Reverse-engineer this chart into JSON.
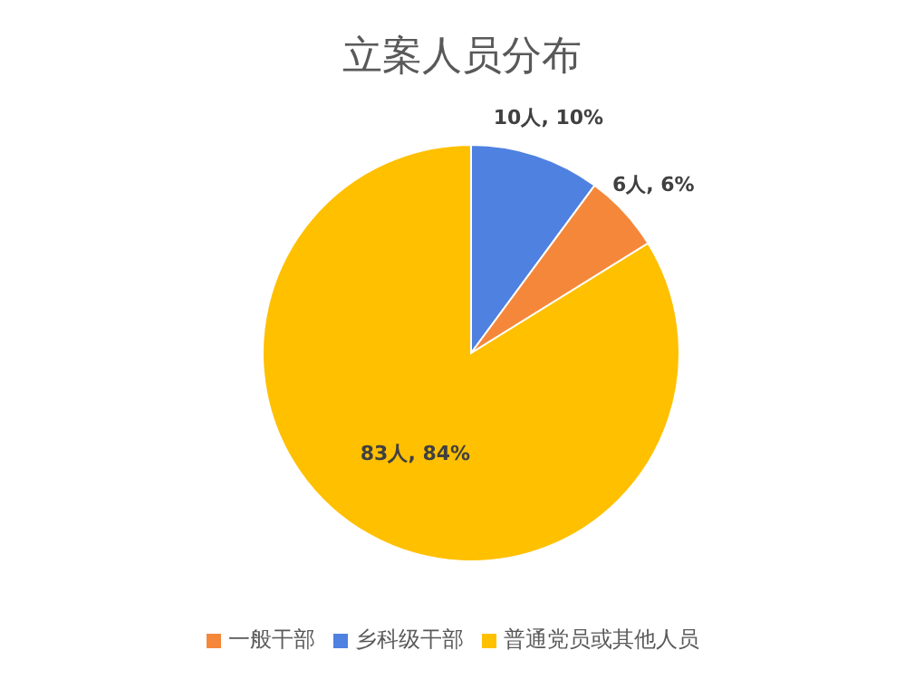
{
  "chart_data": {
    "type": "pie",
    "title": "立案人员分布",
    "categories": [
      "乡科级干部",
      "一般干部",
      "普通党员或其他人员"
    ],
    "values": [
      10,
      6,
      83
    ],
    "colors": [
      "#4f81e0",
      "#f5873a",
      "#ffc000"
    ],
    "value_labels": [
      "10人, 10%",
      "6人, 6%",
      "83人, 84%"
    ],
    "legend": "bottom"
  }
}
